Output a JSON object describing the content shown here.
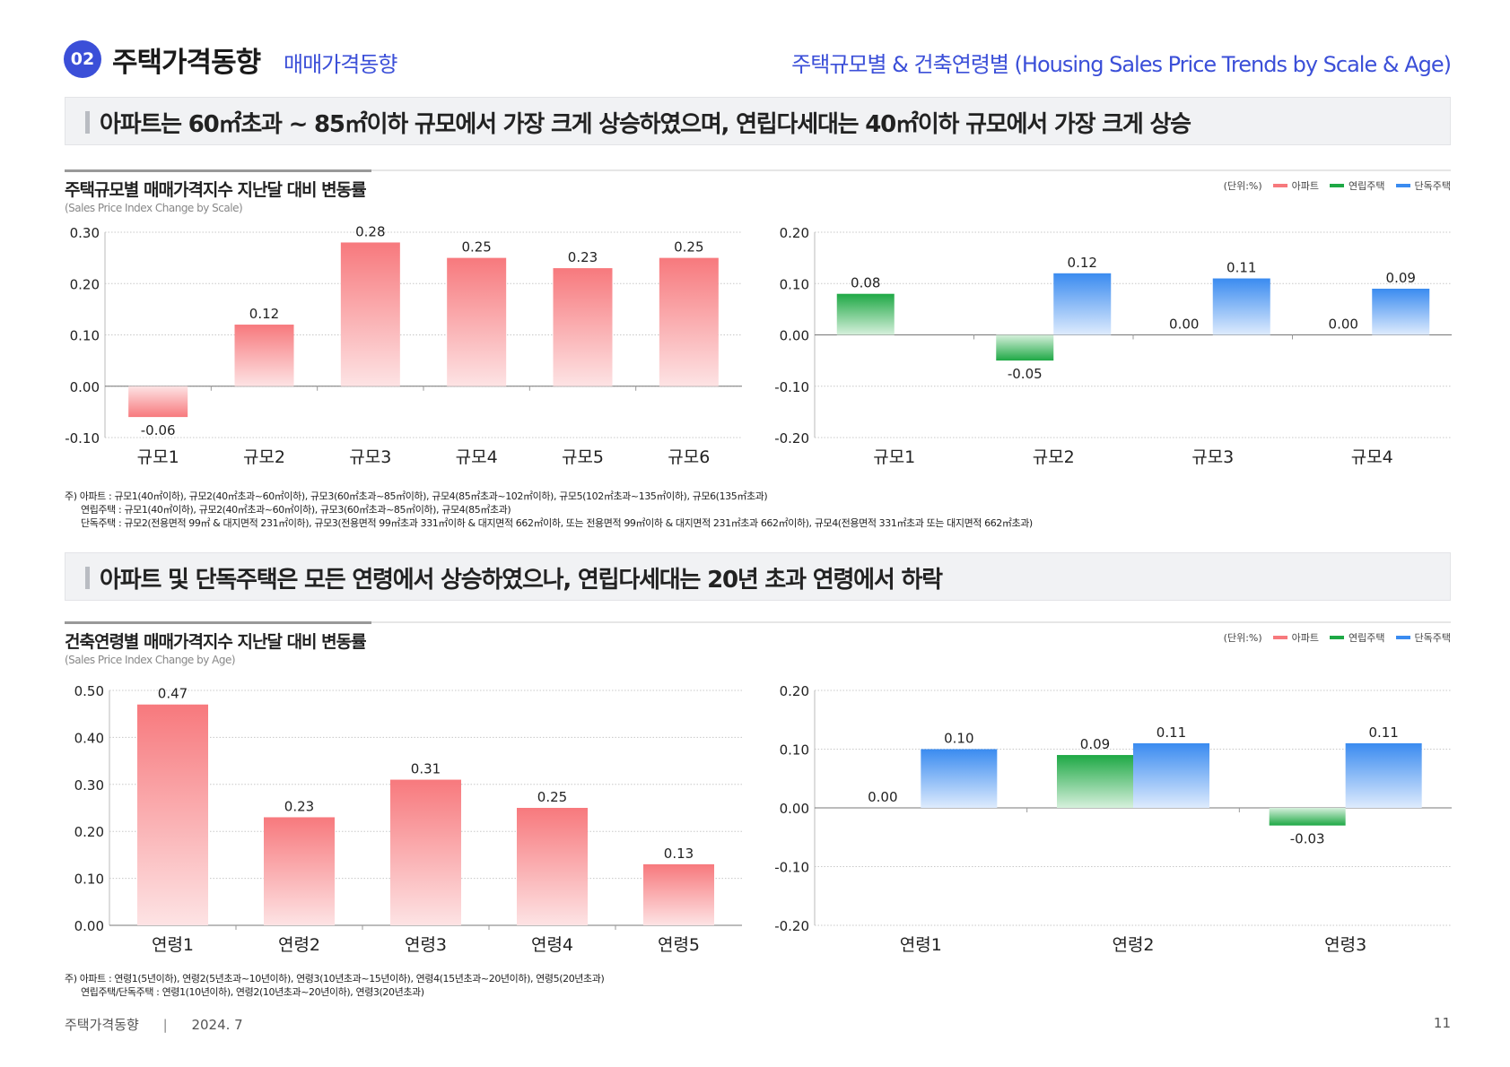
{
  "header": {
    "badge": "02",
    "title": "주택가격동향",
    "subtitle": "매매가격동향",
    "right_title": "주택규모별 & 건축연령별 (Housing Sales Price Trends by Scale & Age)"
  },
  "colors": {
    "accent": "#3b4fd8",
    "apartment": "#f7797d",
    "rowhouse": "#1ea845",
    "detached": "#3a8bf0"
  },
  "section1": {
    "banner": "아파트는 60㎡초과 ~ 85㎡이하 규모에서 가장 크게 상승하였으며, 연립다세대는 40㎡이하 규모에서 가장 크게 상승",
    "chart_title": "주택규모별 매매가격지수 지난달 대비 변동률",
    "chart_subtitle": "(Sales Price Index Change by Scale)",
    "unit": "(단위:%)",
    "legend": [
      "아파트",
      "연립주택",
      "단독주택"
    ],
    "notes": [
      "주) 아파트 : 규모1(40㎡이하), 규모2(40㎡초과~60㎡이하), 규모3(60㎡초과~85㎡이하), 규모4(85㎡초과~102㎡이하), 규모5(102㎡초과~135㎡이하), 규모6(135㎡초과)",
      "연립주택 : 규모1(40㎡이하), 규모2(40㎡초과~60㎡이하), 규모3(60㎡초과~85㎡이하), 규모4(85㎡초과)",
      "단독주택 : 규모2(전용면적 99㎡ & 대지면적 231㎡이하), 규모3(전용면적 99㎡초과 331㎡이하 & 대지면적 662㎡이하, 또는 전용면적 99㎡이하 & 대지면적 231㎡초과 662㎡이하), 규모4(전용면적 331㎡초과 또는 대지면적 662㎡초과)"
    ]
  },
  "section2": {
    "banner": "아파트 및 단독주택은 모든 연령에서 상승하였으나, 연립다세대는 20년 초과 연령에서 하락",
    "chart_title": "건축연령별 매매가격지수 지난달 대비 변동률",
    "chart_subtitle": "(Sales Price Index Change by Age)",
    "unit": "(단위:%)",
    "legend": [
      "아파트",
      "연립주택",
      "단독주택"
    ],
    "notes": [
      "주) 아파트 : 연령1(5년이하), 연령2(5년초과~10년이하), 연령3(10년초과~15년이하), 연령4(15년초과~20년이하), 연령5(20년초과)",
      "연립주택/단독주택 : 연령1(10년이하), 연령2(10년초과~20년이하), 연령3(20년초과)"
    ]
  },
  "footer": {
    "left": "주택가격동향",
    "separator": "|",
    "date": "2024. 7",
    "page": "11"
  },
  "chart_data": [
    {
      "type": "bar",
      "categories": [
        "규모1",
        "규모2",
        "규모3",
        "규모4",
        "규모5",
        "규모6"
      ],
      "series": [
        {
          "name": "아파트",
          "values": [
            -0.06,
            0.12,
            0.28,
            0.25,
            0.23,
            0.25
          ]
        }
      ],
      "ylim": [
        -0.1,
        0.3
      ],
      "yticks": [
        "0.30",
        "0.20",
        "0.10",
        "0.00",
        "-0.10"
      ],
      "labels": [
        "-0.06",
        "0.12",
        "0.28",
        "0.25",
        "0.23",
        "0.25"
      ],
      "grid": true
    },
    {
      "type": "bar",
      "categories": [
        "규모1",
        "규모2",
        "규모3",
        "규모4"
      ],
      "series": [
        {
          "name": "연립주택",
          "values": [
            0.08,
            -0.05,
            0.0,
            0.0
          ]
        },
        {
          "name": "단독주택",
          "values": [
            null,
            0.12,
            0.11,
            0.09
          ]
        }
      ],
      "ylim": [
        -0.2,
        0.2
      ],
      "yticks": [
        "0.20",
        "0.10",
        "0.00",
        "-0.10",
        "-0.20"
      ],
      "labels": [
        [
          "0.08",
          "-0.05",
          "0.00",
          "0.00"
        ],
        [
          "",
          "0.12",
          "0.11",
          "0.09"
        ]
      ],
      "grid": true
    },
    {
      "type": "bar",
      "categories": [
        "연령1",
        "연령2",
        "연령3",
        "연령4",
        "연령5"
      ],
      "series": [
        {
          "name": "아파트",
          "values": [
            0.47,
            0.23,
            0.31,
            0.25,
            0.13
          ]
        }
      ],
      "ylim": [
        0.0,
        0.5
      ],
      "yticks": [
        "0.50",
        "0.40",
        "0.30",
        "0.20",
        "0.10",
        "0.00"
      ],
      "labels": [
        "0.47",
        "0.23",
        "0.31",
        "0.25",
        "0.13"
      ],
      "grid": true
    },
    {
      "type": "bar",
      "categories": [
        "연령1",
        "연령2",
        "연령3"
      ],
      "series": [
        {
          "name": "연립주택",
          "values": [
            0.0,
            0.09,
            -0.03
          ]
        },
        {
          "name": "단독주택",
          "values": [
            0.1,
            0.11,
            0.11
          ]
        }
      ],
      "ylim": [
        -0.2,
        0.2
      ],
      "yticks": [
        "0.20",
        "0.10",
        "0.00",
        "-0.10",
        "-0.20"
      ],
      "labels": [
        [
          "0.00",
          "0.09",
          "-0.03"
        ],
        [
          "0.10",
          "0.11",
          "0.11"
        ]
      ],
      "grid": true
    }
  ]
}
